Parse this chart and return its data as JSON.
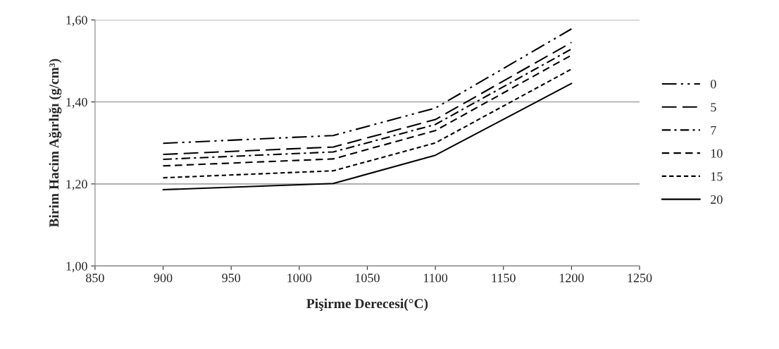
{
  "chart_data": {
    "type": "line",
    "xlabel": "Pişirme Derecesi(°C)",
    "ylabel": "Birim Hacim Ağırlığı (g/cm³)",
    "x": [
      900,
      1025,
      1100,
      1200
    ],
    "series": [
      {
        "name": "0",
        "color": "#000000",
        "line_style": "dashdotdot",
        "values": [
          1.299,
          1.318,
          1.385,
          1.578
        ]
      },
      {
        "name": "5",
        "color": "#000000",
        "line_style": "longdash",
        "values": [
          1.272,
          1.29,
          1.357,
          1.545
        ]
      },
      {
        "name": "7",
        "color": "#000000",
        "line_style": "dashdot",
        "values": [
          1.26,
          1.278,
          1.345,
          1.529
        ]
      },
      {
        "name": "10",
        "color": "#000000",
        "line_style": "dashed",
        "values": [
          1.244,
          1.261,
          1.33,
          1.514
        ]
      },
      {
        "name": "15",
        "color": "#000000",
        "line_style": "shortdash",
        "values": [
          1.215,
          1.232,
          1.3,
          1.48
        ]
      },
      {
        "name": "20",
        "color": "#000000",
        "line_style": "solid",
        "values": [
          1.186,
          1.201,
          1.27,
          1.445
        ]
      }
    ],
    "xlim": [
      850,
      1250
    ],
    "xticks": [
      850,
      900,
      950,
      1000,
      1050,
      1100,
      1150,
      1200,
      1250
    ],
    "ylim": [
      1.0,
      1.6
    ],
    "yticks": [
      {
        "value": 1.0,
        "label": "1,00"
      },
      {
        "value": 1.2,
        "label": "1,20"
      },
      {
        "value": 1.4,
        "label": "1,40"
      },
      {
        "value": 1.6,
        "label": "1,60"
      }
    ],
    "grid": "y",
    "legend": "right",
    "marker": "none"
  }
}
